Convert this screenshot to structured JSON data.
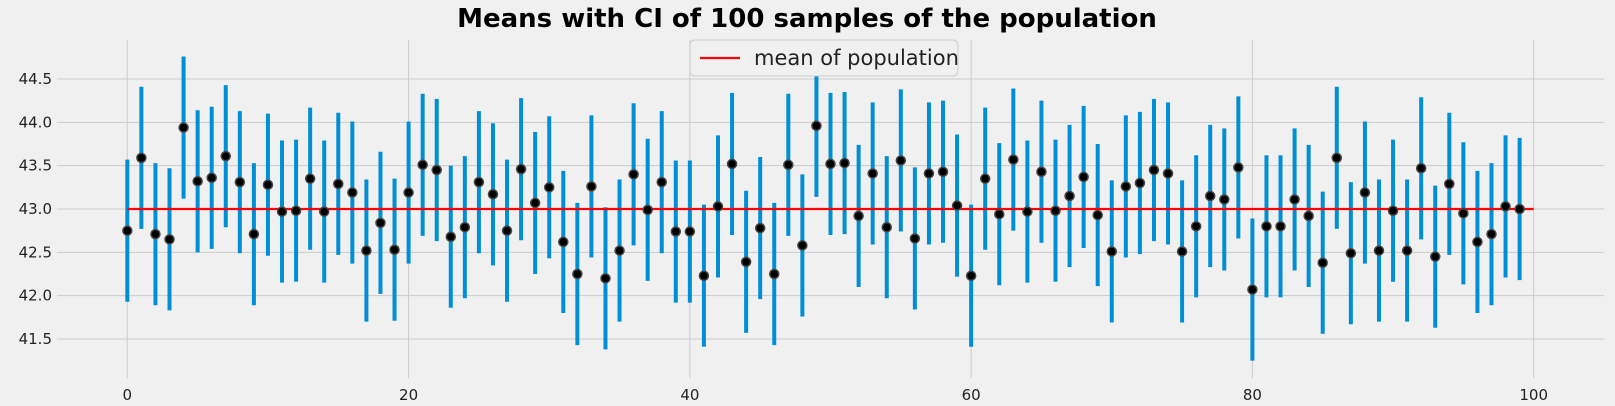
{
  "chart_data": {
    "type": "scatter",
    "title": "Means with CI of 100 samples of the population",
    "xlabel": "",
    "ylabel": "",
    "xlim": [
      -5,
      105
    ],
    "ylim": [
      41.05,
      44.95
    ],
    "x_ticks": [
      0,
      20,
      40,
      60,
      80,
      100
    ],
    "y_ticks": [
      41.5,
      42.0,
      42.5,
      43.0,
      43.5,
      44.0,
      44.5
    ],
    "grid": true,
    "legend_position": "upper center",
    "reference_line": {
      "label": "mean of population",
      "value": 43.0,
      "color": "#ff0000"
    },
    "errorbar_color": "#008fd5",
    "marker_color": "#000000",
    "ci_half_width": 0.82,
    "series": [
      {
        "x": [
          0,
          1,
          2,
          3,
          4,
          5,
          6,
          7,
          8,
          9,
          10,
          11,
          12,
          13,
          14,
          15,
          16,
          17,
          18,
          19,
          20,
          21,
          22,
          23,
          24,
          25,
          26,
          27,
          28,
          29,
          30,
          31,
          32,
          33,
          34,
          35,
          36,
          37,
          38,
          39,
          40,
          41,
          42,
          43,
          44,
          45,
          46,
          47,
          48,
          49,
          50,
          51,
          52,
          53,
          54,
          55,
          56,
          57,
          58,
          59,
          60,
          61,
          62,
          63,
          64,
          65,
          66,
          67,
          68,
          69,
          70,
          71,
          72,
          73,
          74,
          75,
          76,
          77,
          78,
          79,
          80,
          81,
          82,
          83,
          84,
          85,
          86,
          87,
          88,
          89,
          90,
          91,
          92,
          93,
          94,
          95,
          96,
          97,
          98,
          99
        ],
        "y": [
          42.75,
          43.59,
          42.71,
          42.65,
          43.94,
          43.32,
          43.36,
          43.61,
          43.31,
          42.71,
          43.28,
          42.97,
          42.98,
          43.35,
          42.97,
          43.29,
          43.19,
          42.52,
          42.84,
          42.53,
          43.19,
          43.51,
          43.45,
          42.68,
          42.79,
          43.31,
          43.17,
          42.75,
          43.46,
          43.07,
          43.25,
          42.62,
          42.25,
          43.26,
          42.2,
          42.52,
          43.4,
          42.99,
          43.31,
          42.74,
          42.74,
          42.23,
          43.03,
          43.52,
          42.39,
          42.78,
          42.25,
          43.51,
          42.58,
          43.96,
          43.52,
          43.53,
          42.92,
          43.41,
          42.79,
          43.56,
          42.66,
          43.41,
          43.43,
          43.04,
          42.23,
          43.35,
          42.94,
          43.57,
          42.97,
          43.43,
          42.98,
          43.15,
          43.37,
          42.93,
          42.51,
          43.26,
          43.3,
          43.45,
          43.41,
          42.51,
          42.8,
          43.15,
          43.11,
          43.48,
          42.07,
          42.8,
          42.8,
          43.11,
          42.92,
          42.38,
          43.59,
          42.49,
          43.19,
          42.52,
          42.98,
          42.52,
          43.47,
          42.45,
          43.29,
          42.95,
          42.62,
          42.71,
          43.03,
          43.0
        ]
      }
    ]
  }
}
